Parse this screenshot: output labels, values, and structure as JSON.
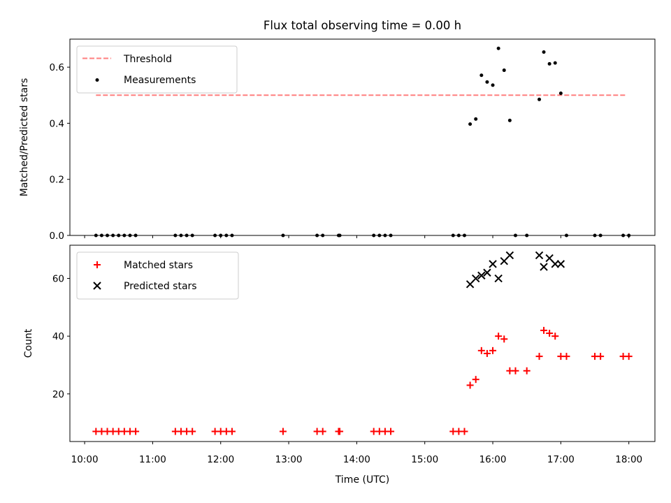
{
  "figure": {
    "title": "Flux total observing time = 0.00 h"
  },
  "colors": {
    "threshold": "#ff7f7f",
    "measurement": "#000000",
    "matched": "#ff0000",
    "predicted": "#000000"
  },
  "chart_data": [
    {
      "type": "scatter",
      "panel": "ratio",
      "title": "Flux total observing time = 0.00 h",
      "xlabel": "",
      "ylabel": "Matched/Predicted stars",
      "xlim": [
        "09:47",
        "18:23"
      ],
      "ylim": [
        0,
        0.7
      ],
      "yticks": [
        "0.0",
        "0.2",
        "0.4",
        "0.6"
      ],
      "legend": "top-left",
      "threshold": {
        "name": "Threshold",
        "value": 0.5,
        "x_start": "10:10",
        "x_end": "17:57",
        "style": "dashed"
      },
      "series": [
        {
          "name": "Measurements",
          "marker": "dot",
          "x": [
            "10:10",
            "10:15",
            "10:20",
            "10:25",
            "10:30",
            "10:35",
            "10:40",
            "10:45",
            "11:20",
            "11:25",
            "11:30",
            "11:35",
            "11:55",
            "12:00",
            "12:05",
            "12:10",
            "12:55",
            "13:25",
            "13:30",
            "13:44",
            "13:45",
            "14:15",
            "14:20",
            "14:25",
            "14:30",
            "15:25",
            "15:30",
            "15:35",
            "15:40",
            "15:45",
            "15:50",
            "15:55",
            "16:00",
            "16:05",
            "16:10",
            "16:15",
            "16:20",
            "16:30",
            "16:41",
            "16:45",
            "16:50",
            "16:55",
            "17:00",
            "17:05",
            "17:30",
            "17:35",
            "17:55",
            "18:00"
          ],
          "y": [
            0,
            0,
            0,
            0,
            0,
            0,
            0,
            0,
            0,
            0,
            0,
            0,
            0,
            0,
            0,
            0,
            0,
            0,
            0,
            0,
            0,
            0,
            0,
            0,
            0,
            0,
            0,
            0,
            0.397,
            0.415,
            0.571,
            0.547,
            0.536,
            0.667,
            0.589,
            0.41,
            0,
            0,
            0.485,
            0.654,
            0.612,
            0.615,
            0.507,
            0,
            0,
            0,
            0,
            0
          ]
        }
      ]
    },
    {
      "type": "scatter",
      "panel": "counts",
      "xlabel": "Time (UTC)",
      "ylabel": "Count",
      "xlim": [
        "09:47",
        "18:23"
      ],
      "ylim": [
        3.5,
        71.5
      ],
      "xticks": [
        "10:00",
        "11:00",
        "12:00",
        "13:00",
        "14:00",
        "15:00",
        "16:00",
        "17:00",
        "18:00"
      ],
      "yticks": [
        "20",
        "40",
        "60"
      ],
      "legend": "top-left",
      "series": [
        {
          "name": "Matched stars",
          "marker": "plus",
          "x": [
            "10:10",
            "10:15",
            "10:20",
            "10:25",
            "10:30",
            "10:35",
            "10:40",
            "10:45",
            "11:20",
            "11:25",
            "11:30",
            "11:35",
            "11:55",
            "12:00",
            "12:05",
            "12:10",
            "12:55",
            "13:25",
            "13:30",
            "13:44",
            "13:45",
            "14:15",
            "14:20",
            "14:25",
            "14:30",
            "15:25",
            "15:30",
            "15:35",
            "15:40",
            "15:45",
            "15:50",
            "15:55",
            "16:00",
            "16:05",
            "16:10",
            "16:15",
            "16:20",
            "16:30",
            "16:41",
            "16:45",
            "16:50",
            "16:55",
            "17:00",
            "17:05",
            "17:30",
            "17:35",
            "17:55",
            "18:00"
          ],
          "y": [
            7,
            7,
            7,
            7,
            7,
            7,
            7,
            7,
            7,
            7,
            7,
            7,
            7,
            7,
            7,
            7,
            7,
            7,
            7,
            7,
            7,
            7,
            7,
            7,
            7,
            7,
            7,
            7,
            23,
            25,
            35,
            34,
            35,
            40,
            39,
            28,
            28,
            28,
            33,
            42,
            41,
            40,
            33,
            33,
            33,
            33,
            33,
            33
          ]
        },
        {
          "name": "Predicted stars",
          "marker": "x",
          "x": [
            "15:40",
            "15:45",
            "15:50",
            "15:55",
            "16:00",
            "16:05",
            "16:10",
            "16:15",
            "16:41",
            "16:45",
            "16:50",
            "16:55",
            "17:00"
          ],
          "y": [
            58,
            60,
            61,
            62,
            65,
            60,
            66,
            68,
            68,
            64,
            67,
            65,
            65
          ]
        }
      ]
    }
  ]
}
